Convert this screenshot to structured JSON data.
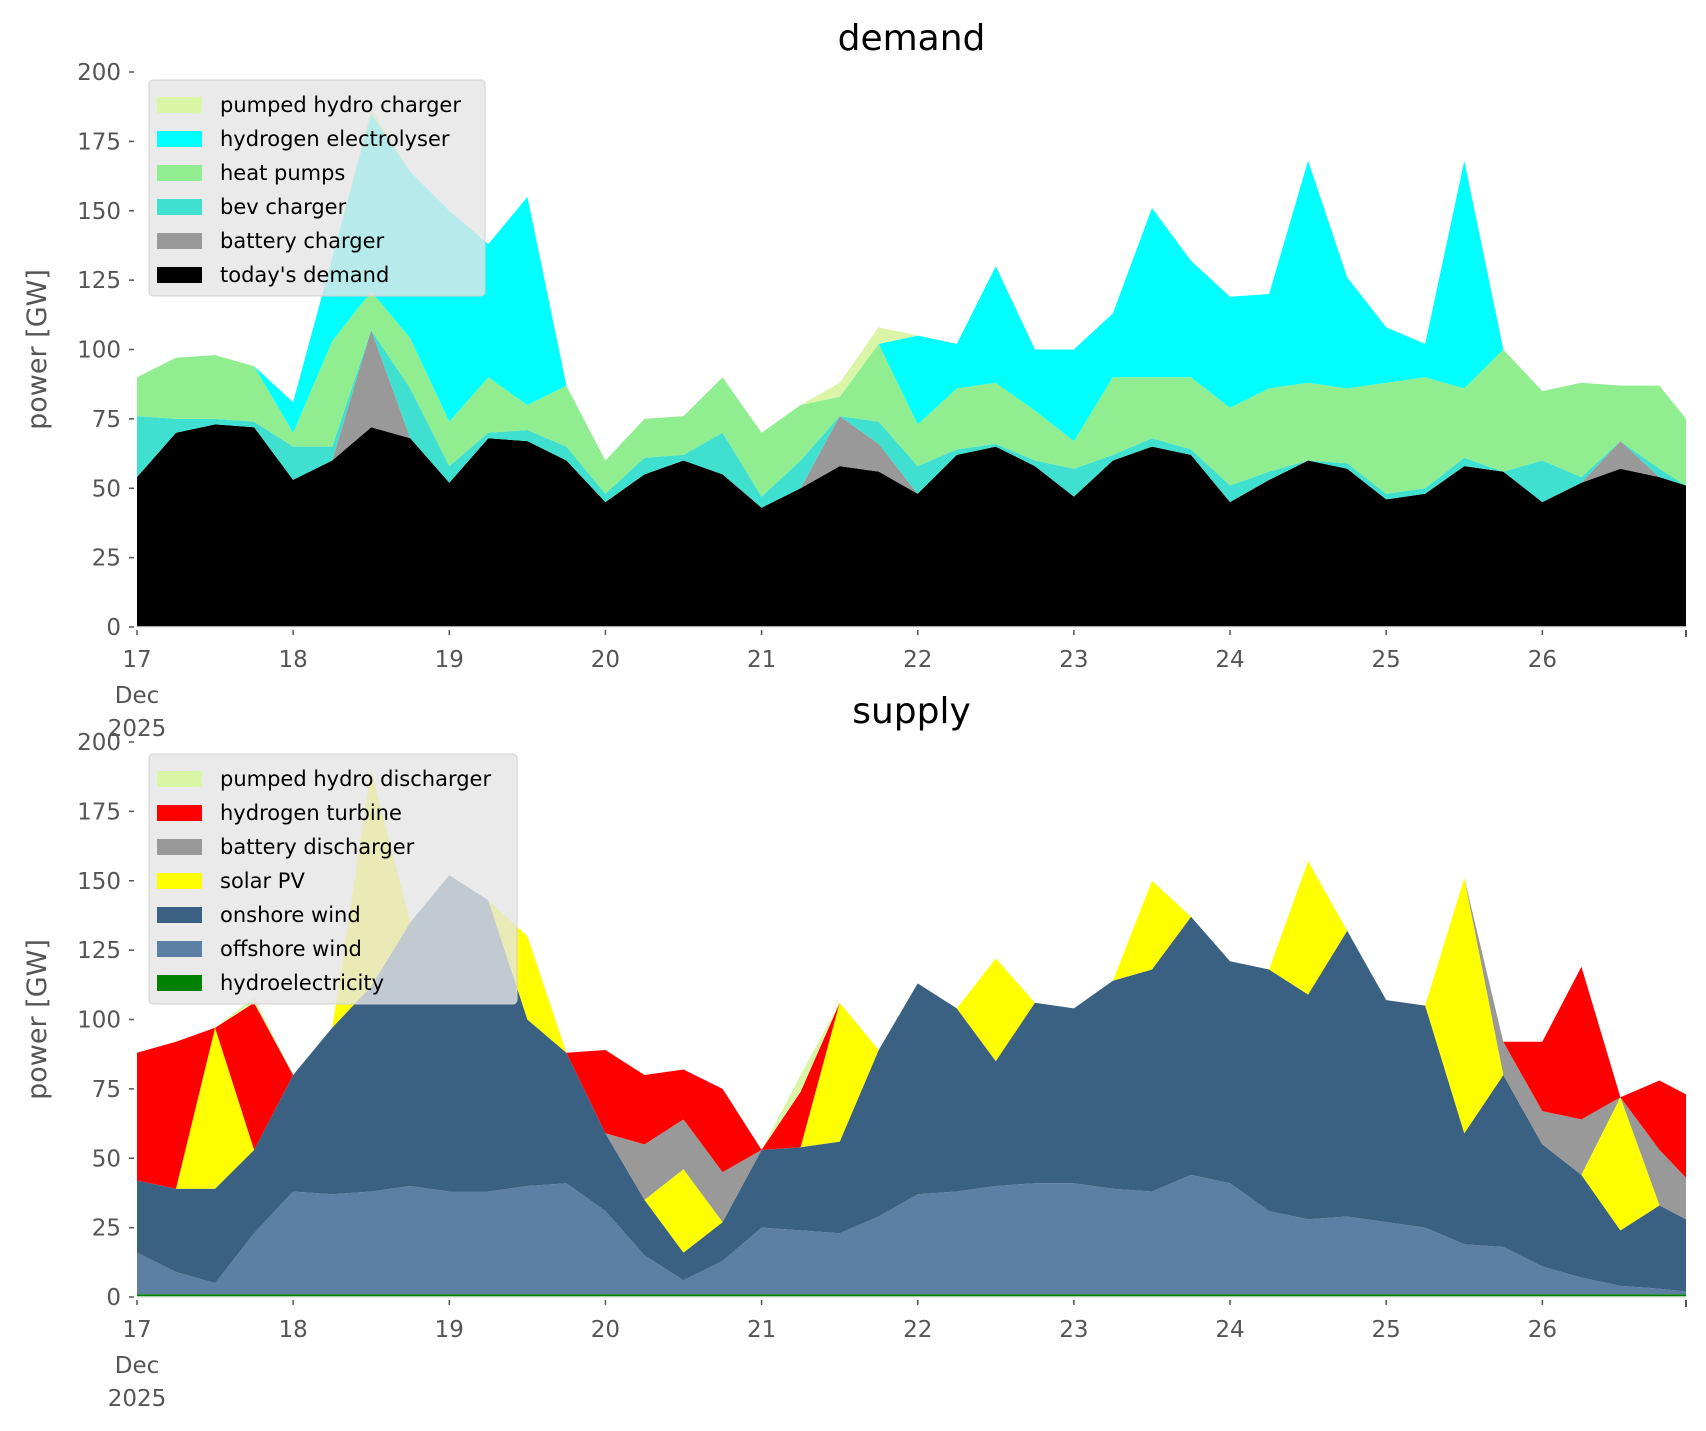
{
  "chart_data": [
    {
      "type": "area",
      "stacked": true,
      "title": "demand",
      "xlabel": "",
      "ylabel": "power [GW]",
      "ylim": [
        0,
        200
      ],
      "xlim": [
        17,
        26.92
      ],
      "yticks": [
        "0",
        "25",
        "50",
        "75",
        "100",
        "125",
        "150",
        "175",
        "200"
      ],
      "xticks": [
        "17",
        "18",
        "19",
        "20",
        "21",
        "22",
        "23",
        "24",
        "25",
        "26"
      ],
      "xtick_sub": [
        "Dec",
        "2025"
      ],
      "legend_position": "top-left",
      "x": [
        17.0,
        17.25,
        17.5,
        17.75,
        18.0,
        18.25,
        18.5,
        18.75,
        19.0,
        19.25,
        19.5,
        19.75,
        20.0,
        20.25,
        20.5,
        20.75,
        21.0,
        21.25,
        21.5,
        21.75,
        22.0,
        22.25,
        22.5,
        22.75,
        23.0,
        23.25,
        23.5,
        23.75,
        24.0,
        24.25,
        24.5,
        24.75,
        25.0,
        25.25,
        25.5,
        25.75,
        26.0,
        26.25,
        26.5,
        26.75,
        26.92
      ],
      "series": [
        {
          "name": "today's demand",
          "color": "#000000",
          "values": [
            54,
            70,
            73,
            72,
            53,
            60,
            72,
            68,
            52,
            68,
            67,
            60,
            45,
            55,
            60,
            55,
            43,
            50,
            58,
            56,
            48,
            62,
            65,
            58,
            47,
            60,
            65,
            62,
            45,
            53,
            60,
            57,
            46,
            48,
            58,
            56,
            45,
            52,
            57,
            54,
            51
          ]
        },
        {
          "name": "battery charger",
          "color": "#999999",
          "values": [
            0,
            0,
            0,
            0,
            0,
            0,
            35,
            0,
            0,
            0,
            0,
            0,
            0,
            0,
            0,
            0,
            0,
            0,
            18,
            10,
            0,
            0,
            0,
            0,
            0,
            0,
            0,
            0,
            0,
            0,
            0,
            0,
            0,
            0,
            0,
            0,
            0,
            0,
            10,
            0,
            0
          ]
        },
        {
          "name": "bev charger",
          "color": "#40e0d0",
          "values": [
            22,
            5,
            2,
            2,
            12,
            5,
            0,
            18,
            6,
            2,
            4,
            5,
            3,
            6,
            2,
            15,
            4,
            10,
            0,
            8,
            10,
            2,
            1,
            2,
            10,
            2,
            3,
            2,
            6,
            3,
            0,
            2,
            2,
            2,
            3,
            0,
            15,
            2,
            0,
            3,
            0
          ]
        },
        {
          "name": "heat pumps",
          "color": "#90ee90",
          "values": [
            14,
            22,
            23,
            20,
            5,
            38,
            14,
            18,
            16,
            20,
            9,
            22,
            12,
            14,
            14,
            20,
            23,
            20,
            7,
            28,
            15,
            22,
            22,
            18,
            10,
            28,
            22,
            26,
            28,
            30,
            28,
            27,
            40,
            40,
            25,
            44,
            25,
            34,
            20,
            30,
            24
          ]
        },
        {
          "name": "hydrogen electrolyser",
          "color": "#00ffff",
          "values": [
            0,
            0,
            0,
            0,
            11,
            30,
            64,
            60,
            76,
            48,
            75,
            0,
            0,
            0,
            0,
            0,
            0,
            0,
            0,
            0,
            32,
            16,
            42,
            22,
            33,
            23,
            61,
            42,
            40,
            34,
            80,
            40,
            20,
            12,
            82,
            0,
            0,
            0,
            0,
            0,
            0
          ]
        },
        {
          "name": "pumped hydro charger",
          "color": "#dbf5a6",
          "values": [
            0,
            0,
            0,
            0,
            0,
            0,
            2,
            0,
            0,
            0,
            0,
            0,
            0,
            0,
            0,
            0,
            0,
            0,
            5,
            6,
            0,
            0,
            0,
            0,
            0,
            0,
            0,
            0,
            0,
            0,
            0,
            0,
            0,
            0,
            0,
            0,
            0,
            0,
            0,
            0,
            0
          ]
        }
      ]
    },
    {
      "type": "area",
      "stacked": true,
      "title": "supply",
      "xlabel": "",
      "ylabel": "power [GW]",
      "ylim": [
        0,
        200
      ],
      "xlim": [
        17,
        26.92
      ],
      "yticks": [
        "0",
        "25",
        "50",
        "75",
        "100",
        "125",
        "150",
        "175",
        "200"
      ],
      "xticks": [
        "17",
        "18",
        "19",
        "20",
        "21",
        "22",
        "23",
        "24",
        "25",
        "26"
      ],
      "xtick_sub": [
        "Dec",
        "2025"
      ],
      "legend_position": "top-left",
      "x": [
        17.0,
        17.25,
        17.5,
        17.75,
        18.0,
        18.25,
        18.5,
        18.75,
        19.0,
        19.25,
        19.5,
        19.75,
        20.0,
        20.25,
        20.5,
        20.75,
        21.0,
        21.25,
        21.5,
        21.75,
        22.0,
        22.25,
        22.5,
        22.75,
        23.0,
        23.25,
        23.5,
        23.75,
        24.0,
        24.25,
        24.5,
        24.75,
        25.0,
        25.25,
        25.5,
        25.75,
        26.0,
        26.25,
        26.5,
        26.75,
        26.92
      ],
      "series": [
        {
          "name": "hydroelectricity",
          "color": "#008000",
          "values": [
            1,
            1,
            1,
            1,
            1,
            1,
            1,
            1,
            1,
            1,
            1,
            1,
            1,
            1,
            1,
            1,
            1,
            1,
            1,
            1,
            1,
            1,
            1,
            1,
            1,
            1,
            1,
            1,
            1,
            1,
            1,
            1,
            1,
            1,
            1,
            1,
            1,
            1,
            1,
            1,
            1
          ]
        },
        {
          "name": "offshore wind",
          "color": "#5b80a3",
          "values": [
            15,
            8,
            4,
            22,
            37,
            36,
            37,
            39,
            37,
            37,
            39,
            40,
            30,
            14,
            5,
            12,
            24,
            23,
            22,
            28,
            36,
            37,
            39,
            40,
            40,
            38,
            37,
            43,
            40,
            30,
            27,
            28,
            26,
            24,
            18,
            17,
            10,
            6,
            3,
            2,
            1
          ]
        },
        {
          "name": "onshore wind",
          "color": "#3b6182",
          "values": [
            26,
            30,
            34,
            30,
            42,
            60,
            74,
            95,
            114,
            105,
            60,
            47,
            28,
            20,
            10,
            14,
            28,
            30,
            33,
            60,
            76,
            66,
            45,
            65,
            63,
            75,
            80,
            93,
            80,
            87,
            81,
            103,
            80,
            80,
            40,
            62,
            44,
            37,
            20,
            30,
            26
          ]
        },
        {
          "name": "solar PV",
          "color": "#ffff00",
          "values": [
            0,
            0,
            58,
            0,
            0,
            0,
            78,
            0,
            0,
            0,
            30,
            0,
            0,
            0,
            30,
            0,
            0,
            0,
            50,
            0,
            0,
            0,
            37,
            0,
            0,
            0,
            32,
            0,
            0,
            0,
            48,
            0,
            0,
            0,
            92,
            0,
            0,
            0,
            48,
            0,
            0
          ]
        },
        {
          "name": "battery discharger",
          "color": "#999999",
          "values": [
            0,
            0,
            0,
            0,
            0,
            0,
            0,
            0,
            0,
            0,
            0,
            0,
            0,
            20,
            18,
            18,
            0,
            0,
            0,
            0,
            0,
            0,
            0,
            0,
            0,
            0,
            0,
            0,
            0,
            0,
            0,
            0,
            0,
            0,
            0,
            12,
            12,
            20,
            0,
            20,
            15
          ]
        },
        {
          "name": "hydrogen turbine",
          "color": "#ff0000",
          "values": [
            46,
            53,
            0,
            53,
            0,
            0,
            0,
            0,
            0,
            0,
            0,
            0,
            30,
            25,
            18,
            30,
            0,
            20,
            0,
            0,
            0,
            0,
            0,
            0,
            0,
            0,
            0,
            0,
            0,
            0,
            0,
            0,
            0,
            0,
            0,
            0,
            25,
            55,
            0,
            25,
            30
          ]
        },
        {
          "name": "pumped hydro discharger",
          "color": "#dbf5a6",
          "values": [
            0,
            0,
            0,
            2,
            0,
            0,
            0,
            0,
            0,
            0,
            0,
            0,
            0,
            0,
            0,
            0,
            0,
            6,
            0,
            0,
            0,
            0,
            0,
            0,
            0,
            0,
            0,
            0,
            0,
            0,
            0,
            0,
            0,
            0,
            0,
            0,
            0,
            0,
            0,
            0,
            0
          ]
        }
      ]
    }
  ],
  "legend_order": {
    "demand": [
      "pumped hydro charger",
      "hydrogen electrolyser",
      "heat pumps",
      "bev charger",
      "battery charger",
      "today's demand"
    ],
    "supply": [
      "pumped hydro discharger",
      "hydrogen turbine",
      "battery discharger",
      "solar PV",
      "onshore wind",
      "offshore wind",
      "hydroelectricity"
    ]
  }
}
